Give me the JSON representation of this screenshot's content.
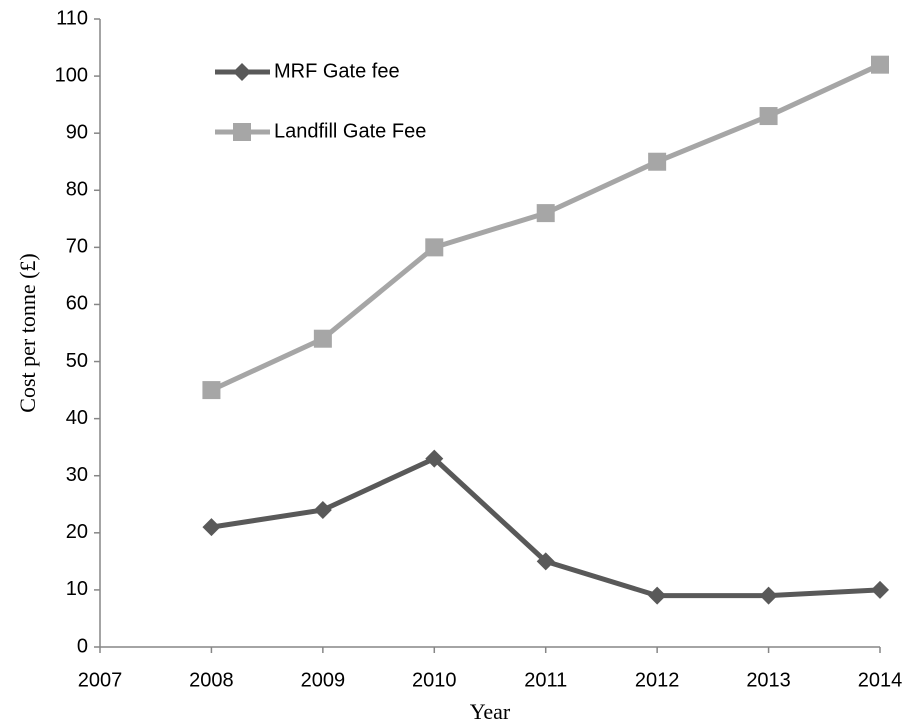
{
  "chart_data": {
    "type": "line",
    "x_label": "Year",
    "y_label": "Cost per tonne (£)",
    "x": [
      2008,
      2009,
      2010,
      2011,
      2012,
      2013,
      2014
    ],
    "series": [
      {
        "name": "MRF Gate fee",
        "color": "#595959",
        "marker": "diamond",
        "values": [
          21,
          24,
          33,
          15,
          9,
          9,
          10
        ]
      },
      {
        "name": "Landfill Gate Fee",
        "color": "#a6a6a6",
        "marker": "square",
        "values": [
          45,
          54,
          70,
          76,
          85,
          93,
          102
        ]
      }
    ],
    "xlim": [
      2007,
      2014
    ],
    "xticks": [
      2007,
      2008,
      2009,
      2010,
      2011,
      2012,
      2013,
      2014
    ],
    "ylim": [
      0,
      110
    ],
    "yticks": [
      0,
      10,
      20,
      30,
      40,
      50,
      60,
      70,
      80,
      90,
      100,
      110
    ],
    "grid": false,
    "legend": "upper left"
  }
}
